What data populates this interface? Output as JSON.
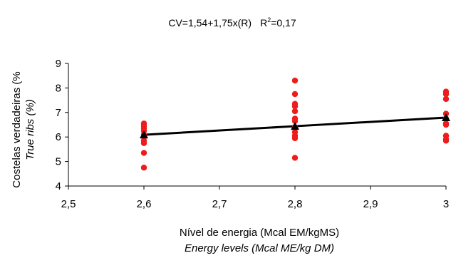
{
  "chart_data": {
    "type": "scatter",
    "equation": {
      "text": "CV=1,54+1,75x(R)",
      "r2_prefix": "R",
      "r2_sup": "2",
      "r2_value": "=0,17"
    },
    "xlabel": "Nível de energia (Mcal EM/kgMS)",
    "xlabel_en": "Energy levels (Mcal ME/kg DM)",
    "ylabel": "Costelas verdadeiras (%",
    "ylabel_en": "True ribs (%)",
    "xlim": [
      2.5,
      3.0
    ],
    "ylim": [
      4,
      9
    ],
    "xticks": [
      2.5,
      2.6,
      2.7,
      2.8,
      2.9,
      3.0
    ],
    "xtick_labels": [
      "2,5",
      "2,6",
      "2,7",
      "2,8",
      "2,9",
      "3"
    ],
    "yticks": [
      4,
      5,
      6,
      7,
      8,
      9
    ],
    "ytick_labels": [
      "4",
      "5",
      "6",
      "7",
      "8",
      "9"
    ],
    "colors": {
      "observed": "#ee1c1c",
      "fitted": "#000000"
    },
    "series": [
      {
        "role": "observed",
        "points": [
          [
            2.6,
            6.55
          ],
          [
            2.6,
            6.45
          ],
          [
            2.6,
            6.35
          ],
          [
            2.6,
            6.25
          ],
          [
            2.6,
            6.1
          ],
          [
            2.6,
            6.0
          ],
          [
            2.6,
            5.85
          ],
          [
            2.6,
            5.75
          ],
          [
            2.6,
            5.35
          ],
          [
            2.6,
            4.75
          ],
          [
            2.8,
            8.3
          ],
          [
            2.8,
            7.75
          ],
          [
            2.8,
            7.35
          ],
          [
            2.8,
            7.25
          ],
          [
            2.8,
            7.05
          ],
          [
            2.8,
            6.75
          ],
          [
            2.8,
            6.65
          ],
          [
            2.8,
            6.4
          ],
          [
            2.8,
            6.2
          ],
          [
            2.8,
            6.05
          ],
          [
            2.8,
            5.95
          ],
          [
            2.8,
            5.15
          ],
          [
            3.0,
            7.85
          ],
          [
            3.0,
            7.75
          ],
          [
            3.0,
            7.55
          ],
          [
            3.0,
            6.95
          ],
          [
            3.0,
            6.75
          ],
          [
            3.0,
            6.55
          ],
          [
            3.0,
            6.5
          ],
          [
            3.0,
            6.05
          ],
          [
            3.0,
            5.9
          ],
          [
            3.0,
            5.85
          ]
        ]
      },
      {
        "role": "fitted",
        "points": [
          [
            2.6,
            6.09
          ],
          [
            2.8,
            6.44
          ],
          [
            3.0,
            6.79
          ]
        ]
      }
    ]
  }
}
